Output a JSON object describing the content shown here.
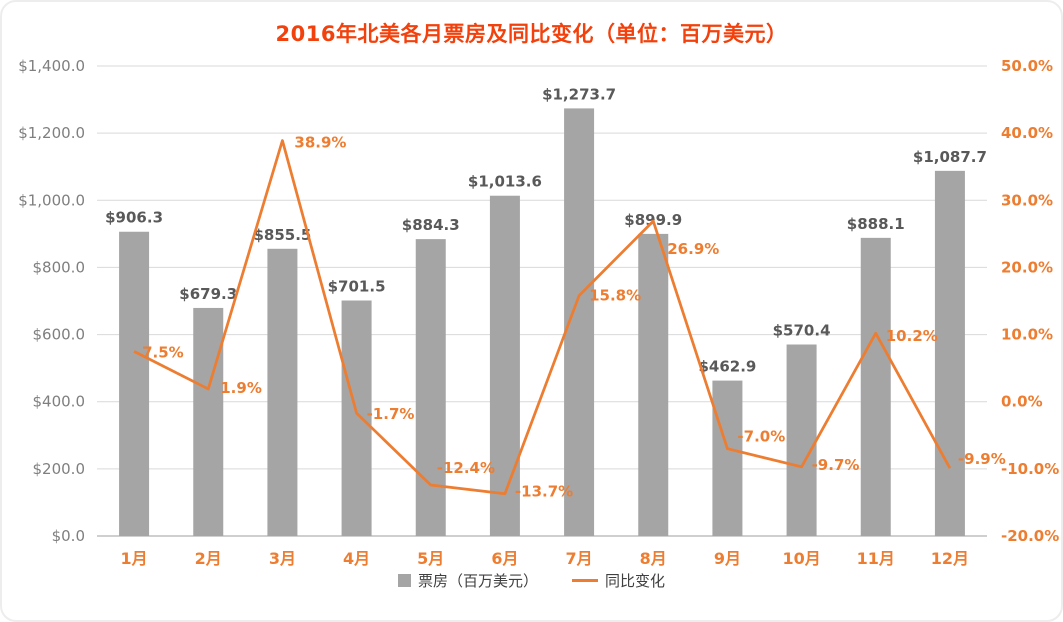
{
  "chart": {
    "title": "2016年北美各月票房及同比变化（单位：百万美元）",
    "legend": {
      "bar": "票房（百万美元）",
      "line": "同比变化"
    }
  },
  "colors": {
    "bar": "#a5a5a5",
    "line": "#ed7d31",
    "title": "#f2410c",
    "bar_label": "#595959",
    "left_tick": "#7f7f7f",
    "grid": "#d9d9d9",
    "axis": "#bfbfbf"
  },
  "chart_data": {
    "type": "bar",
    "subtype": "bar+line combo, dual axis",
    "title": "2016年北美各月票房及同比变化（单位：百万美元）",
    "categories": [
      "1月",
      "2月",
      "3月",
      "4月",
      "5月",
      "6月",
      "7月",
      "8月",
      "9月",
      "10月",
      "11月",
      "12月"
    ],
    "series": [
      {
        "name": "票房（百万美元）",
        "type": "bar",
        "axis": "left",
        "color": "#a5a5a5",
        "values": [
          906.3,
          679.3,
          855.5,
          701.5,
          884.3,
          1013.6,
          1273.7,
          899.9,
          462.9,
          570.4,
          888.1,
          1087.7
        ],
        "labels": [
          "$906.3",
          "$679.3",
          "$855.5",
          "$701.5",
          "$884.3",
          "$1,013.6",
          "$1,273.7",
          "$899.9",
          "$462.9",
          "$570.4",
          "$888.1",
          "$1,087.7"
        ]
      },
      {
        "name": "同比变化",
        "type": "line",
        "axis": "right",
        "color": "#ed7d31",
        "values": [
          7.5,
          1.9,
          38.9,
          -1.7,
          -12.4,
          -13.7,
          15.8,
          26.9,
          -7.0,
          -9.7,
          10.2,
          -9.9
        ],
        "labels": [
          "7.5%",
          "1.9%",
          "38.9%",
          "-1.7%",
          "-12.4%",
          "-13.7%",
          "15.8%",
          "26.9%",
          "-7.0%",
          "-9.7%",
          "10.2%",
          "-9.9%"
        ]
      }
    ],
    "left_axis": {
      "min": 0,
      "max": 1400,
      "step": 200,
      "tick_labels": [
        "$0.0",
        "$200.0",
        "$400.0",
        "$600.0",
        "$800.0",
        "$1,000.0",
        "$1,200.0",
        "$1,400.0"
      ]
    },
    "right_axis": {
      "min": -20,
      "max": 50,
      "step": 10,
      "tick_labels": [
        "-20.0%",
        "-10.0%",
        "0.0%",
        "10.0%",
        "20.0%",
        "30.0%",
        "40.0%",
        "50.0%"
      ]
    },
    "grid": true,
    "legend_position": "bottom"
  }
}
